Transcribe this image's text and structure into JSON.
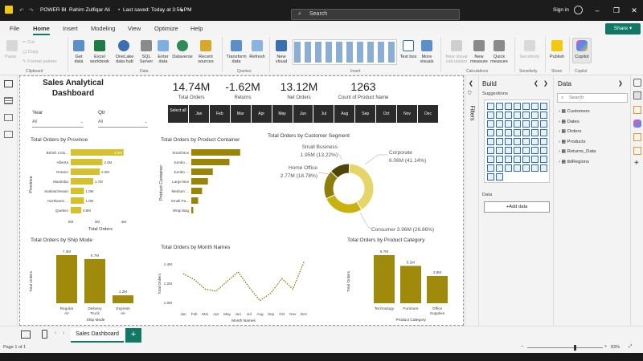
{
  "titlebar": {
    "app": "POWER BI",
    "file_info": "Rahim Zulfiqar Ali",
    "saved": "Last saved: Today at 3:56 PM",
    "search_placeholder": "Search",
    "signin": "Sign in"
  },
  "menu": [
    "File",
    "Home",
    "Insert",
    "Modeling",
    "View",
    "Optimize",
    "Help"
  ],
  "share_label": "Share",
  "ribbon": {
    "clipboard": {
      "paste": "Paste",
      "cut": "Cut",
      "copy": "Copy",
      "format": "Format painter",
      "group": "Clipboard"
    },
    "data": {
      "get": "Get data",
      "excel": "Excel workbook",
      "onelake": "OneLake data hub",
      "sql": "SQL Server",
      "enter": "Enter data",
      "dataverse": "Dataverse",
      "recent": "Recent sources",
      "group": "Data"
    },
    "queries": {
      "transform": "Transform data",
      "refresh": "Refresh",
      "group": "Queries"
    },
    "insert": {
      "newvisual": "New visual",
      "textbox": "Text box",
      "morevisuals": "More visuals",
      "group": "Insert"
    },
    "calc": {
      "newvcalc": "New visual calculation",
      "newmeasure": "New measure",
      "quickmeasure": "Quick measure",
      "group": "Calculations"
    },
    "sens": {
      "label": "Sensitivity",
      "group": "Sensitivity"
    },
    "share": {
      "publish": "Publish",
      "group": "Share"
    },
    "copilot": {
      "label": "Copilot",
      "group": "Copilot"
    }
  },
  "dashboard": {
    "title": "Sales Analytical Dashboard",
    "slicers": {
      "year_label": "Year",
      "year_value": "All",
      "qtr_label": "Qtr",
      "qtr_value": "All"
    },
    "kpis": [
      {
        "value": "14.74M",
        "label": "Total Orders"
      },
      {
        "value": "-1.62M",
        "label": "Returns"
      },
      {
        "value": "13.12M",
        "label": "Net Orders"
      },
      {
        "value": "1263",
        "label": "Count of Product Name"
      }
    ],
    "months": [
      "Select all",
      "Jan",
      "Feb",
      "Mar",
      "Apr",
      "May",
      "Jun",
      "Jul",
      "Aug",
      "Sep",
      "Oct",
      "Nov",
      "Dec"
    ]
  },
  "chart_data": [
    {
      "type": "bar",
      "orientation": "horizontal",
      "title": "Total Orders by Province",
      "ylabel": "Province",
      "xlabel": "Total Orders",
      "categories": [
        "British Colu...",
        "Alberta",
        "Ontario",
        "Manitoba",
        "Saskatchewan",
        "Northwest ...",
        "Quebec"
      ],
      "values": [
        4.0,
        2.4,
        2.2,
        1.7,
        1.0,
        1.0,
        0.8
      ],
      "data_labels": [
        "4.0M",
        "2.4M",
        "2.2M",
        "1.7M",
        "1.0M",
        "1.0M",
        "0.8M"
      ],
      "xticks": [
        "0M",
        "2M",
        "4M"
      ],
      "xlim": [
        0,
        4.5
      ]
    },
    {
      "type": "bar",
      "orientation": "horizontal",
      "title": "Total Orders by Product Container",
      "ylabel": "Product Container",
      "categories": [
        "Small Box",
        "Jumbo ...",
        "Jumbo ...",
        "Large Box",
        "Medium ...",
        "Small Pa...",
        "Wrap Bag"
      ],
      "values": [
        5.0,
        3.9,
        2.2,
        1.7,
        1.1,
        0.7,
        0.2
      ]
    },
    {
      "type": "pie",
      "title": "Total Orders by Customer Segment",
      "slices": [
        {
          "label": "Corporate",
          "value": 6.06,
          "text": "6.06M (41.14%)",
          "color": "#e6d66a"
        },
        {
          "label": "Consumer",
          "value": 3.96,
          "text": "Consumer 3.96M (26.86%)",
          "color": "#c9b20f"
        },
        {
          "label": "Home Office",
          "value": 2.77,
          "text": "2.77M (18.78%)",
          "color": "#8f7c0a"
        },
        {
          "label": "Small Business",
          "value": 1.95,
          "text": "1.95M (13.22%)",
          "color": "#4f4306"
        }
      ]
    },
    {
      "type": "bar",
      "title": "Total Orders by Ship Mode",
      "xlabel": "Ship Mode",
      "ylabel": "Total Orders",
      "categories": [
        "Regular Air",
        "Delivery Truck",
        "Express Air"
      ],
      "values": [
        7.3,
        6.7,
        1.2
      ],
      "data_labels": [
        "7.3M",
        "6.7M",
        "1.2M"
      ]
    },
    {
      "type": "line",
      "title": "Total Orders by Month Names",
      "xlabel": "Month Names",
      "ylabel": "Total Orders",
      "categories": [
        "Jan",
        "Feb",
        "Mar",
        "Apr",
        "May",
        "Jun",
        "Jul",
        "Aug",
        "Sep",
        "Oct",
        "Nov",
        "Dec"
      ],
      "values": [
        1.3,
        1.24,
        1.14,
        1.12,
        1.22,
        1.32,
        1.16,
        1.02,
        1.1,
        1.25,
        1.14,
        1.42
      ],
      "yticks": [
        "1.0M",
        "1.2M",
        "1.4M"
      ],
      "ylim": [
        0.96,
        1.46
      ]
    },
    {
      "type": "bar",
      "title": "Total Orders by Product Category",
      "xlabel": "Product Category",
      "ylabel": "Total Orders",
      "categories": [
        "Technology",
        "Furniture",
        "Office Supplies"
      ],
      "values": [
        6.7,
        5.2,
        3.8
      ],
      "data_labels": [
        "6.7M",
        "5.2M",
        "3.8M"
      ]
    }
  ],
  "build": {
    "title": "Build",
    "suggestions": "Suggestions",
    "data_label": "Data",
    "add_data": "+Add data"
  },
  "datapane": {
    "title": "Data",
    "search_placeholder": "Search",
    "tables": [
      "Customers",
      "Dates",
      "Orders",
      "Products",
      "Returns_Data",
      "tblRegions"
    ]
  },
  "filters_label": "Filters",
  "tabs": {
    "page": "Sales Dashboard",
    "add": "+"
  },
  "status": {
    "page": "Page 1 of 1",
    "zoom": "83%"
  }
}
